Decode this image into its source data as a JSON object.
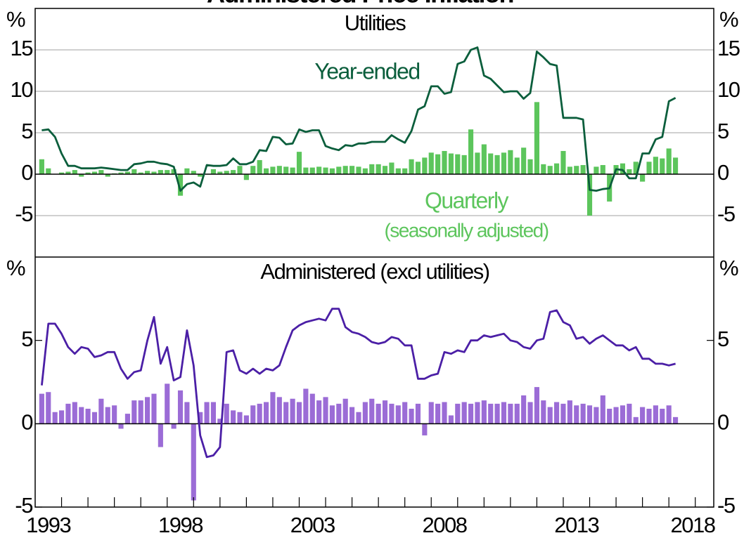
{
  "title": "Administered Price Inflation",
  "chart_data": [
    {
      "type": "combo",
      "title": "Utilities",
      "y_unit": "%",
      "xlim": [
        1993,
        2018.7
      ],
      "ylim": [
        -10,
        20
      ],
      "yticks": [
        -5,
        0,
        5,
        10,
        15
      ],
      "grid": true,
      "x": [
        1993.25,
        1993.5,
        1993.75,
        1994,
        1994.25,
        1994.5,
        1994.75,
        1995,
        1995.25,
        1995.5,
        1995.75,
        1996,
        1996.25,
        1996.5,
        1996.75,
        1997,
        1997.25,
        1997.5,
        1997.75,
        1998,
        1998.25,
        1998.5,
        1998.75,
        1999,
        1999.25,
        1999.5,
        1999.75,
        2000,
        2000.25,
        2000.5,
        2000.75,
        2001,
        2001.25,
        2001.5,
        2001.75,
        2002,
        2002.25,
        2002.5,
        2002.75,
        2003,
        2003.25,
        2003.5,
        2003.75,
        2004,
        2004.25,
        2004.5,
        2004.75,
        2005,
        2005.25,
        2005.5,
        2005.75,
        2006,
        2006.25,
        2006.5,
        2006.75,
        2007,
        2007.25,
        2007.5,
        2007.75,
        2008,
        2008.25,
        2008.5,
        2008.75,
        2009,
        2009.25,
        2009.5,
        2009.75,
        2010,
        2010.25,
        2010.5,
        2010.75,
        2011,
        2011.25,
        2011.5,
        2011.75,
        2012,
        2012.25,
        2012.5,
        2012.75,
        2013,
        2013.25,
        2013.5,
        2013.75,
        2014,
        2014.25,
        2014.5,
        2014.75,
        2015,
        2015.25,
        2015.5,
        2015.75,
        2016,
        2016.25,
        2016.5,
        2016.75,
        2017,
        2017.25
      ],
      "series": [
        {
          "name": "Year-ended",
          "kind": "line",
          "color": "#0b5e3c",
          "values": [
            5.3,
            5.4,
            4.5,
            2.5,
            1.0,
            1.0,
            0.7,
            0.7,
            0.7,
            0.8,
            0.7,
            0.6,
            0.5,
            0.5,
            1.2,
            1.3,
            1.5,
            1.5,
            1.3,
            1.2,
            0.9,
            -2.0,
            -1.2,
            -1.0,
            -1.5,
            1.1,
            1.0,
            1.0,
            1.1,
            1.9,
            1.2,
            1.2,
            1.5,
            2.9,
            2.8,
            4.5,
            4.4,
            3.6,
            3.7,
            5.4,
            5.1,
            5.3,
            5.3,
            3.4,
            3.1,
            2.9,
            3.5,
            3.4,
            3.7,
            3.7,
            3.9,
            3.9,
            3.9,
            4.7,
            4.2,
            3.8,
            5.2,
            7.8,
            8.2,
            10.6,
            10.6,
            9.7,
            9.9,
            13.3,
            13.6,
            15.0,
            15.3,
            11.9,
            11.5,
            10.7,
            9.9,
            10.0,
            10.0,
            9.1,
            9.8,
            14.8,
            14.1,
            13.3,
            13.1,
            6.8,
            6.8,
            6.8,
            6.6,
            -1.9,
            -2.0,
            -1.8,
            -1.7,
            0.6,
            0.5,
            -0.5,
            -0.5,
            2.5,
            2.5,
            4.2,
            4.5,
            8.8,
            9.2
          ]
        },
        {
          "name": "Quarterly",
          "note": "(seasonally adjusted)",
          "kind": "bar",
          "color": "#5cc55c",
          "values": [
            1.8,
            0.7,
            0.0,
            0.2,
            0.3,
            0.5,
            -0.3,
            0.2,
            0.3,
            0.5,
            -0.3,
            0.1,
            0.2,
            0.3,
            0.6,
            0.2,
            0.4,
            0.3,
            0.5,
            0.5,
            0.6,
            -2.6,
            0.7,
            0.4,
            -0.3,
            0.0,
            0.6,
            0.3,
            0.4,
            0.5,
            1.0,
            -0.7,
            1.0,
            1.7,
            0.7,
            0.9,
            1.0,
            0.9,
            0.8,
            2.7,
            0.8,
            0.8,
            0.9,
            0.8,
            0.7,
            0.9,
            1.0,
            1.0,
            0.9,
            0.7,
            1.2,
            1.2,
            1.0,
            1.4,
            0.7,
            0.7,
            1.8,
            1.5,
            2.0,
            2.6,
            2.4,
            2.8,
            2.5,
            2.4,
            2.3,
            5.4,
            2.6,
            3.6,
            2.5,
            2.3,
            2.6,
            2.9,
            2.0,
            3.2,
            1.8,
            8.7,
            1.2,
            1.0,
            1.3,
            2.8,
            0.9,
            1.0,
            1.1,
            -5.0,
            0.9,
            1.1,
            -3.3,
            1.1,
            1.3,
            0.6,
            1.5,
            -0.9,
            1.5,
            2.1,
            1.9,
            3.1,
            2.0
          ]
        }
      ]
    },
    {
      "type": "combo",
      "title": "Administered (excl utilities)",
      "y_unit": "%",
      "xlim": [
        1993,
        2018.7
      ],
      "ylim": [
        -5,
        10
      ],
      "yticks": [
        -5,
        0,
        5
      ],
      "grid": false,
      "xticks": [
        1993,
        1998,
        2003,
        2008,
        2013,
        2018
      ],
      "xminor": [
        1994,
        1995,
        1996,
        1997,
        1998,
        1999,
        2000,
        2001,
        2002,
        2003,
        2004,
        2005,
        2006,
        2007,
        2008,
        2009,
        2010,
        2011,
        2012,
        2013,
        2014,
        2015,
        2016,
        2017,
        2018
      ],
      "x": [
        1993.25,
        1993.5,
        1993.75,
        1994,
        1994.25,
        1994.5,
        1994.75,
        1995,
        1995.25,
        1995.5,
        1995.75,
        1996,
        1996.25,
        1996.5,
        1996.75,
        1997,
        1997.25,
        1997.5,
        1997.75,
        1998,
        1998.25,
        1998.5,
        1998.75,
        1999,
        1999.25,
        1999.5,
        1999.75,
        2000,
        2000.25,
        2000.5,
        2000.75,
        2001,
        2001.25,
        2001.5,
        2001.75,
        2002,
        2002.25,
        2002.5,
        2002.75,
        2003,
        2003.25,
        2003.5,
        2003.75,
        2004,
        2004.25,
        2004.5,
        2004.75,
        2005,
        2005.25,
        2005.5,
        2005.75,
        2006,
        2006.25,
        2006.5,
        2006.75,
        2007,
        2007.25,
        2007.5,
        2007.75,
        2008,
        2008.25,
        2008.5,
        2008.75,
        2009,
        2009.25,
        2009.5,
        2009.75,
        2010,
        2010.25,
        2010.5,
        2010.75,
        2011,
        2011.25,
        2011.5,
        2011.75,
        2012,
        2012.25,
        2012.5,
        2012.75,
        2013,
        2013.25,
        2013.5,
        2013.75,
        2014,
        2014.25,
        2014.5,
        2014.75,
        2015,
        2015.25,
        2015.5,
        2015.75,
        2016,
        2016.25,
        2016.5,
        2016.75,
        2017,
        2017.25
      ],
      "series": [
        {
          "kind": "line",
          "color": "#4b1fa6",
          "values": [
            2.3,
            6.0,
            6.0,
            5.4,
            4.6,
            4.2,
            4.6,
            4.5,
            4.0,
            4.1,
            4.3,
            4.3,
            3.3,
            2.7,
            3.1,
            3.2,
            5.0,
            6.4,
            3.6,
            4.6,
            2.6,
            2.8,
            5.6,
            3.5,
            -0.7,
            -2.0,
            -1.9,
            -1.4,
            4.3,
            4.4,
            3.2,
            3.0,
            3.3,
            3.0,
            3.3,
            3.2,
            3.5,
            4.6,
            5.6,
            5.9,
            6.1,
            6.2,
            6.3,
            6.2,
            6.9,
            6.9,
            5.8,
            5.5,
            5.4,
            5.2,
            4.9,
            4.8,
            4.9,
            5.2,
            5.1,
            4.7,
            4.7,
            2.7,
            2.7,
            2.9,
            3.0,
            4.3,
            4.2,
            4.4,
            4.3,
            5.0,
            5.0,
            5.3,
            5.2,
            5.3,
            5.4,
            5.0,
            4.9,
            4.6,
            4.5,
            5.0,
            5.1,
            6.7,
            6.8,
            6.1,
            5.9,
            5.1,
            5.2,
            4.8,
            5.1,
            5.3,
            5.0,
            4.7,
            4.7,
            4.4,
            4.6,
            3.9,
            3.9,
            3.6,
            3.6,
            3.5,
            3.6
          ]
        },
        {
          "kind": "bar",
          "color": "#9b6cd6",
          "values": [
            1.8,
            1.9,
            0.7,
            0.8,
            1.2,
            1.3,
            1.0,
            0.9,
            0.7,
            1.5,
            1.0,
            1.1,
            -0.3,
            0.6,
            1.4,
            1.4,
            1.6,
            1.8,
            -1.4,
            2.4,
            -0.3,
            2.0,
            1.3,
            -4.6,
            0.7,
            1.3,
            1.3,
            0.3,
            1.2,
            0.8,
            0.7,
            0.5,
            1.1,
            1.2,
            1.3,
            1.9,
            1.6,
            1.3,
            1.5,
            1.3,
            2.1,
            1.8,
            1.4,
            1.6,
            1.1,
            1.2,
            1.5,
            1.0,
            0.7,
            1.3,
            1.5,
            1.2,
            1.4,
            1.2,
            1.1,
            1.3,
            0.9,
            1.2,
            -0.7,
            1.3,
            1.2,
            1.3,
            0.5,
            1.2,
            1.3,
            1.2,
            1.3,
            1.4,
            1.2,
            1.2,
            1.3,
            1.2,
            1.2,
            1.7,
            1.3,
            2.2,
            1.4,
            1.0,
            1.3,
            1.2,
            1.4,
            1.1,
            1.2,
            1.1,
            1.0,
            1.7,
            0.9,
            1.0,
            1.1,
            1.2,
            0.4,
            1.0,
            0.9,
            1.1,
            0.9,
            1.1,
            0.4
          ]
        }
      ]
    }
  ]
}
